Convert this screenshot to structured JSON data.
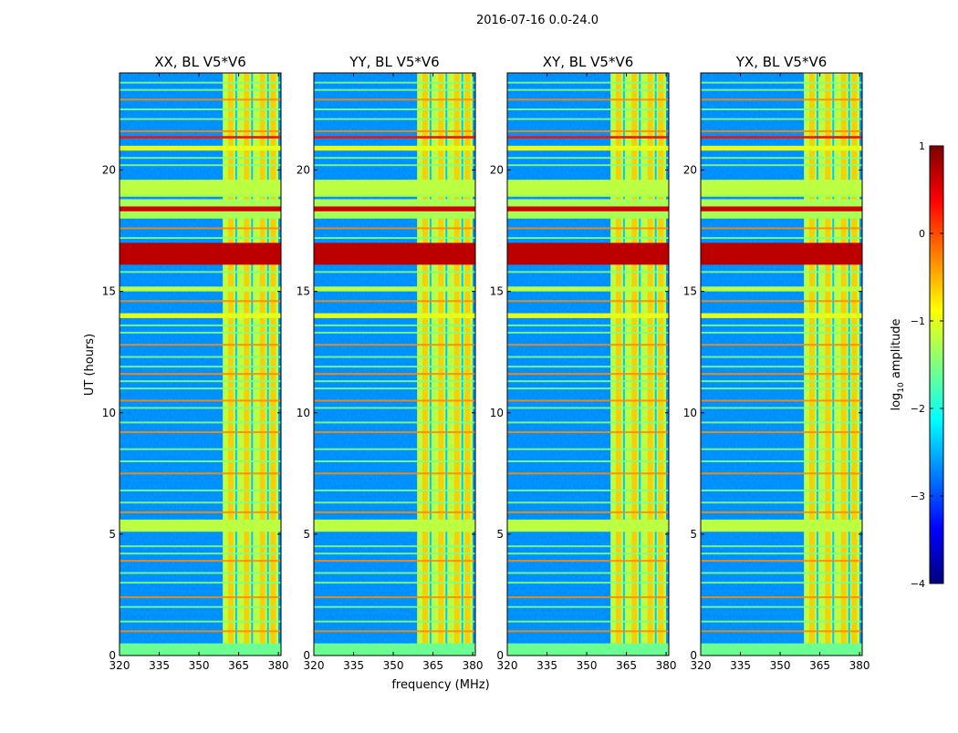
{
  "figure": {
    "suptitle": "2016-07-16 0.0-24.0",
    "ylabel": "UT (hours)",
    "xlabel": "frequency (MHz)"
  },
  "colorbar": {
    "label_prefix": "log",
    "label_sub": "10",
    "label_suffix": " amplitude",
    "range": [
      -4,
      1
    ],
    "ticks": [
      "1",
      "0",
      "−1",
      "−2",
      "−3",
      "−4"
    ],
    "tick_values": [
      1,
      0,
      -1,
      -2,
      -3,
      -4
    ],
    "colormap": "jet",
    "colormap_stops": [
      "#00007f",
      "#0000ff",
      "#007fff",
      "#00ffff",
      "#7fff7f",
      "#ffff00",
      "#ff7f00",
      "#ff0000",
      "#7f0000"
    ]
  },
  "chart_data": {
    "type": "heatmap",
    "xlim": [
      320,
      381
    ],
    "ylim": [
      0,
      24
    ],
    "xticks": [
      320,
      335,
      350,
      365,
      380
    ],
    "yticks": [
      0,
      5,
      10,
      15,
      20
    ],
    "panels": [
      {
        "title": "XX, BL V5*V6",
        "polarization": "XX"
      },
      {
        "title": "YY, BL V5*V6",
        "polarization": "YY"
      },
      {
        "title": "XY, BL V5*V6",
        "polarization": "XY"
      },
      {
        "title": "YX, BL V5*V6",
        "polarization": "YX"
      }
    ],
    "background_level": -2.7,
    "high_band": {
      "freq_range": [
        359,
        380
      ],
      "level": -1.2,
      "bright_channels": [
        362,
        368,
        374,
        378
      ]
    },
    "horizontal_bands": [
      {
        "ut_start": 0.0,
        "ut_end": 0.5,
        "level": -1.6
      },
      {
        "ut_start": 5.1,
        "ut_end": 5.6,
        "level": -1.2
      },
      {
        "ut_start": 13.9,
        "ut_end": 14.1,
        "level": -1.0
      },
      {
        "ut_start": 15.0,
        "ut_end": 15.2,
        "level": -1.2
      },
      {
        "ut_start": 16.1,
        "ut_end": 17.0,
        "level": 0.7
      },
      {
        "ut_start": 18.0,
        "ut_end": 18.8,
        "level": -1.3
      },
      {
        "ut_start": 18.3,
        "ut_end": 18.5,
        "level": 0.6
      },
      {
        "ut_start": 18.9,
        "ut_end": 19.1,
        "level": -1.3
      },
      {
        "ut_start": 19.0,
        "ut_end": 19.6,
        "level": -1.2
      },
      {
        "ut_start": 20.8,
        "ut_end": 21.0,
        "level": -1.0
      },
      {
        "ut_start": 21.3,
        "ut_end": 21.4,
        "level": 0.3
      }
    ],
    "rfi_lines_ut": [
      1.0,
      1.4,
      2.0,
      2.4,
      3.0,
      3.4,
      3.9,
      4.2,
      4.5,
      5.9,
      6.3,
      6.8,
      7.5,
      8.0,
      8.5,
      9.2,
      9.6,
      10.2,
      10.5,
      11.0,
      11.3,
      11.6,
      11.9,
      12.3,
      12.8,
      13.3,
      13.6,
      14.6,
      15.8,
      17.2,
      17.6,
      20.2,
      20.5,
      21.6,
      22.1,
      22.5,
      22.9,
      23.3,
      23.6
    ]
  }
}
